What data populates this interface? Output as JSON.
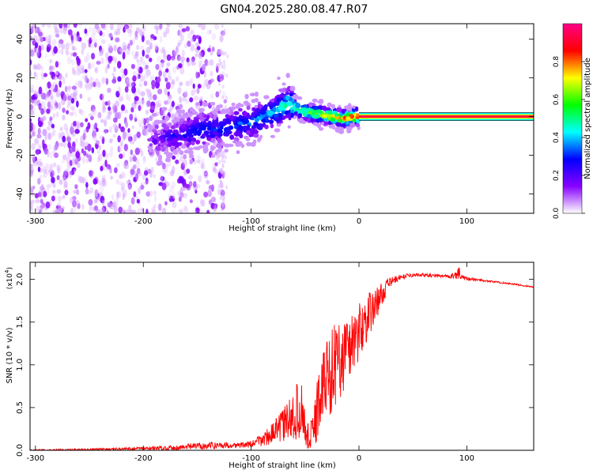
{
  "title": "GN04.2025.280.08.47.R07",
  "chart_data": [
    {
      "type": "heatmap",
      "xlabel": "Height of straight line (km)",
      "ylabel": "Frequency (Hz)",
      "xlim": [
        -305,
        162
      ],
      "ylim": [
        -50,
        48
      ],
      "xticks": [
        -300,
        -200,
        -100,
        0,
        100
      ],
      "yticks": [
        -40,
        -20,
        0,
        20,
        40
      ],
      "grid": false,
      "colorbar": {
        "label": "Normalized spectral amplitude",
        "range": [
          0,
          1
        ],
        "ticks": [
          0.0,
          0.2,
          0.4,
          0.6,
          0.8
        ],
        "tick_labels": [
          "0.0",
          "0.2",
          "0.4",
          "0.6",
          "0.8"
        ],
        "colors": [
          "#ffffff",
          "#8800ff",
          "#0000ff",
          "#00ffff",
          "#00ff00",
          "#ffff00",
          "#ff0000",
          "#ff0088"
        ]
      },
      "ridge": {
        "x": [
          -190,
          -175,
          -150,
          -125,
          -100,
          -80,
          -65,
          -55,
          -45,
          -35,
          -25,
          -15,
          -5,
          0,
          50,
          100,
          162
        ],
        "y": [
          -12,
          -10,
          -7,
          -6,
          -3,
          2,
          7,
          3,
          2,
          1,
          0,
          -1,
          0,
          0,
          0,
          0,
          0
        ],
        "level": [
          0.15,
          0.25,
          0.3,
          0.3,
          0.35,
          0.4,
          0.5,
          0.55,
          0.6,
          0.7,
          0.75,
          0.8,
          0.9,
          0.95,
          0.98,
          0.98,
          0.95
        ]
      }
    },
    {
      "type": "line",
      "xlabel": "Height of straight line (km)",
      "ylabel": "SNR (10 * v/v)",
      "multiplier_label": "(x10",
      "multiplier_exp": "4",
      "multiplier_close": ")",
      "xlim": [
        -305,
        162
      ],
      "ylim": [
        0,
        2.2
      ],
      "xticks": [
        -300,
        -200,
        -100,
        0,
        100
      ],
      "yticks": [
        0.0,
        0.5,
        1.0,
        1.5,
        2.0
      ],
      "ytick_labels": [
        "0.0",
        "0.5",
        "1.0",
        "1.5",
        "2.0"
      ],
      "grid": false,
      "series": [
        {
          "color": "#ff0000",
          "x": [
            -305,
            -250,
            -200,
            -170,
            -150,
            -130,
            -110,
            -100,
            -90,
            -80,
            -70,
            -60,
            -55,
            -52,
            -50,
            -45,
            -40,
            -35,
            -30,
            -25,
            -20,
            -15,
            -10,
            -5,
            0,
            5,
            10,
            15,
            20,
            25,
            30,
            40,
            50,
            60,
            70,
            80,
            90,
            100,
            120,
            140,
            162
          ],
          "y": [
            0.0,
            0.01,
            0.02,
            0.03,
            0.05,
            0.06,
            0.06,
            0.07,
            0.12,
            0.2,
            0.3,
            0.4,
            0.5,
            0.45,
            0.25,
            0.1,
            0.4,
            0.7,
            0.85,
            0.95,
            1.05,
            1.1,
            1.2,
            1.3,
            1.38,
            1.5,
            1.6,
            1.7,
            1.8,
            1.9,
            1.98,
            2.03,
            2.05,
            2.05,
            2.04,
            2.04,
            2.04,
            2.01,
            1.98,
            1.95,
            1.91
          ],
          "noise": [
            0.01,
            0.01,
            0.02,
            0.03,
            0.04,
            0.04,
            0.03,
            0.04,
            0.08,
            0.12,
            0.2,
            0.3,
            0.35,
            0.3,
            0.2,
            0.2,
            0.35,
            0.45,
            0.5,
            0.5,
            0.5,
            0.45,
            0.45,
            0.4,
            0.35,
            0.3,
            0.25,
            0.2,
            0.15,
            0.1,
            0.05,
            0.03,
            0.02,
            0.02,
            0.02,
            0.02,
            0.04,
            0.02,
            0.01,
            0.01,
            0.01
          ]
        }
      ]
    }
  ]
}
